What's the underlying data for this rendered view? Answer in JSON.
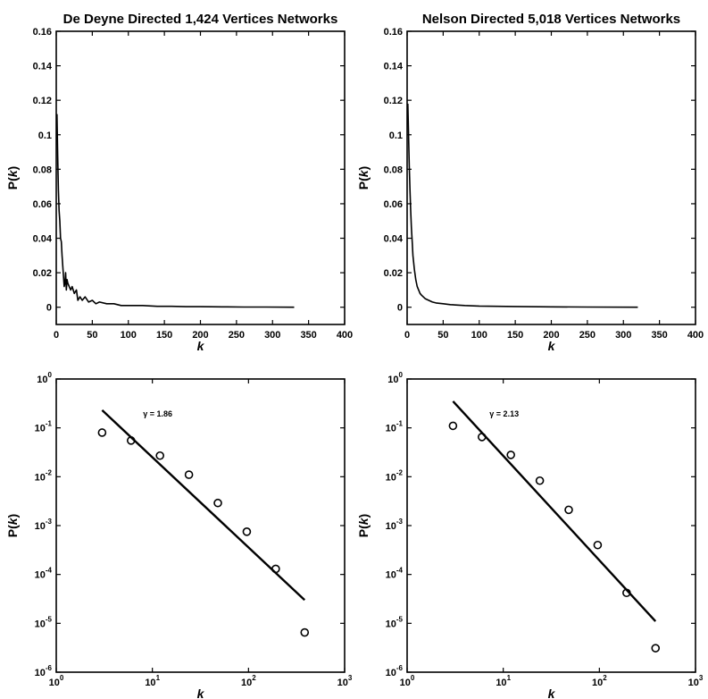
{
  "chart_data": [
    {
      "type": "line",
      "title": "De Deyne Directed 1,424 Vertices Networks",
      "xlabel": "k",
      "ylabel": "P(k)",
      "xscale": "linear",
      "yscale": "linear",
      "xlim": [
        0,
        400
      ],
      "ylim": [
        -0.01,
        0.16
      ],
      "xticks": [
        0,
        50,
        100,
        150,
        200,
        250,
        300,
        350,
        400
      ],
      "xtick_labels": [
        "0",
        "50",
        "100",
        "150",
        "200",
        "250",
        "300",
        "350",
        "400"
      ],
      "yticks": [
        0,
        0.02,
        0.04,
        0.06,
        0.08,
        0.1,
        0.12,
        0.14,
        0.16
      ],
      "ytick_labels": [
        "0",
        "0.02",
        "0.04",
        "0.06",
        "0.08",
        "0.1",
        "0.12",
        "0.14",
        "0.16"
      ],
      "series": [
        {
          "style": "line",
          "x": [
            1,
            2,
            3,
            4,
            5,
            6,
            7,
            8,
            9,
            10,
            11,
            12,
            13,
            14,
            15,
            16,
            18,
            20,
            22,
            25,
            28,
            30,
            33,
            36,
            40,
            45,
            50,
            55,
            60,
            70,
            80,
            90,
            100,
            120,
            140,
            160,
            180,
            200,
            230,
            260,
            290,
            330
          ],
          "y": [
            0.112,
            0.088,
            0.068,
            0.056,
            0.05,
            0.04,
            0.038,
            0.03,
            0.024,
            0.018,
            0.012,
            0.014,
            0.02,
            0.01,
            0.016,
            0.014,
            0.012,
            0.01,
            0.012,
            0.008,
            0.01,
            0.004,
            0.006,
            0.004,
            0.006,
            0.003,
            0.004,
            0.002,
            0.003,
            0.002,
            0.002,
            0.001,
            0.001,
            0.001,
            0.0005,
            0.0005,
            0.0003,
            0.0003,
            0.0002,
            0.0001,
            0.0001,
            0.0
          ]
        }
      ],
      "grid": false
    },
    {
      "type": "line",
      "title": "Nelson Directed 5,018 Vertices Networks",
      "xlabel": "k",
      "ylabel": "P(k)",
      "xscale": "linear",
      "yscale": "linear",
      "xlim": [
        0,
        400
      ],
      "ylim": [
        -0.01,
        0.16
      ],
      "xticks": [
        0,
        50,
        100,
        150,
        200,
        250,
        300,
        350,
        400
      ],
      "xtick_labels": [
        "0",
        "50",
        "100",
        "150",
        "200",
        "250",
        "300",
        "350",
        "400"
      ],
      "yticks": [
        0,
        0.02,
        0.04,
        0.06,
        0.08,
        0.1,
        0.12,
        0.14,
        0.16
      ],
      "ytick_labels": [
        "0",
        "0.02",
        "0.04",
        "0.06",
        "0.08",
        "0.1",
        "0.12",
        "0.14",
        "0.16"
      ],
      "series": [
        {
          "style": "line",
          "x": [
            1,
            2,
            3,
            4,
            5,
            6,
            7,
            8,
            9,
            10,
            12,
            14,
            16,
            18,
            20,
            25,
            30,
            35,
            40,
            50,
            60,
            80,
            100,
            150,
            200,
            250,
            320
          ],
          "y": [
            0.118,
            0.1,
            0.082,
            0.068,
            0.056,
            0.046,
            0.038,
            0.03,
            0.026,
            0.022,
            0.016,
            0.012,
            0.01,
            0.008,
            0.007,
            0.005,
            0.004,
            0.003,
            0.0025,
            0.002,
            0.0015,
            0.001,
            0.0007,
            0.0004,
            0.0002,
            0.0001,
            0.0
          ]
        }
      ],
      "grid": false
    },
    {
      "type": "scatter",
      "xlabel": "k",
      "ylabel": "P(k)",
      "xscale": "log",
      "yscale": "log",
      "xlim": [
        1,
        1000
      ],
      "ylim": [
        1e-06,
        1
      ],
      "xticks": [
        1,
        10,
        100,
        1000
      ],
      "xtick_labels": [
        {
          "base": "10",
          "exp": "0"
        },
        {
          "base": "10",
          "exp": "1"
        },
        {
          "base": "10",
          "exp": "2"
        },
        {
          "base": "10",
          "exp": "3"
        }
      ],
      "yticks": [
        1e-06,
        1e-05,
        0.0001,
        0.001,
        0.01,
        0.1,
        1
      ],
      "ytick_labels": [
        {
          "base": "10",
          "exp": "-6"
        },
        {
          "base": "10",
          "exp": "-5"
        },
        {
          "base": "10",
          "exp": "-4"
        },
        {
          "base": "10",
          "exp": "-3"
        },
        {
          "base": "10",
          "exp": "-2"
        },
        {
          "base": "10",
          "exp": "-1"
        },
        {
          "base": "10",
          "exp": "0"
        }
      ],
      "series": [
        {
          "style": "markers",
          "x": [
            3,
            6,
            12,
            24,
            48,
            96,
            192,
            384
          ],
          "y": [
            0.08,
            0.055,
            0.027,
            0.011,
            0.0029,
            0.00075,
            0.00013,
            6.5e-06
          ]
        },
        {
          "style": "line",
          "x": [
            3,
            384
          ],
          "y": [
            0.23,
            3e-05
          ]
        }
      ],
      "annotation": {
        "text": "γ = 1.86",
        "x": 8,
        "y": 0.17
      },
      "grid": false
    },
    {
      "type": "scatter",
      "xlabel": "k",
      "ylabel": "P(k)",
      "xscale": "log",
      "yscale": "log",
      "xlim": [
        1,
        1000
      ],
      "ylim": [
        1e-06,
        1
      ],
      "xticks": [
        1,
        10,
        100,
        1000
      ],
      "xtick_labels": [
        {
          "base": "10",
          "exp": "0"
        },
        {
          "base": "10",
          "exp": "1"
        },
        {
          "base": "10",
          "exp": "2"
        },
        {
          "base": "10",
          "exp": "3"
        }
      ],
      "yticks": [
        1e-06,
        1e-05,
        0.0001,
        0.001,
        0.01,
        0.1,
        1
      ],
      "ytick_labels": [
        {
          "base": "10",
          "exp": "-6"
        },
        {
          "base": "10",
          "exp": "-5"
        },
        {
          "base": "10",
          "exp": "-4"
        },
        {
          "base": "10",
          "exp": "-3"
        },
        {
          "base": "10",
          "exp": "-2"
        },
        {
          "base": "10",
          "exp": "-1"
        },
        {
          "base": "10",
          "exp": "0"
        }
      ],
      "series": [
        {
          "style": "markers",
          "x": [
            3,
            6,
            12,
            24,
            48,
            96,
            192,
            384
          ],
          "y": [
            0.11,
            0.065,
            0.028,
            0.0083,
            0.0021,
            0.0004,
            4.2e-05,
            3.1e-06
          ]
        },
        {
          "style": "line",
          "x": [
            3,
            384
          ],
          "y": [
            0.35,
            1.1e-05
          ]
        }
      ],
      "annotation": {
        "text": "γ = 2.13",
        "x": 7.2,
        "y": 0.17
      },
      "grid": false
    }
  ]
}
